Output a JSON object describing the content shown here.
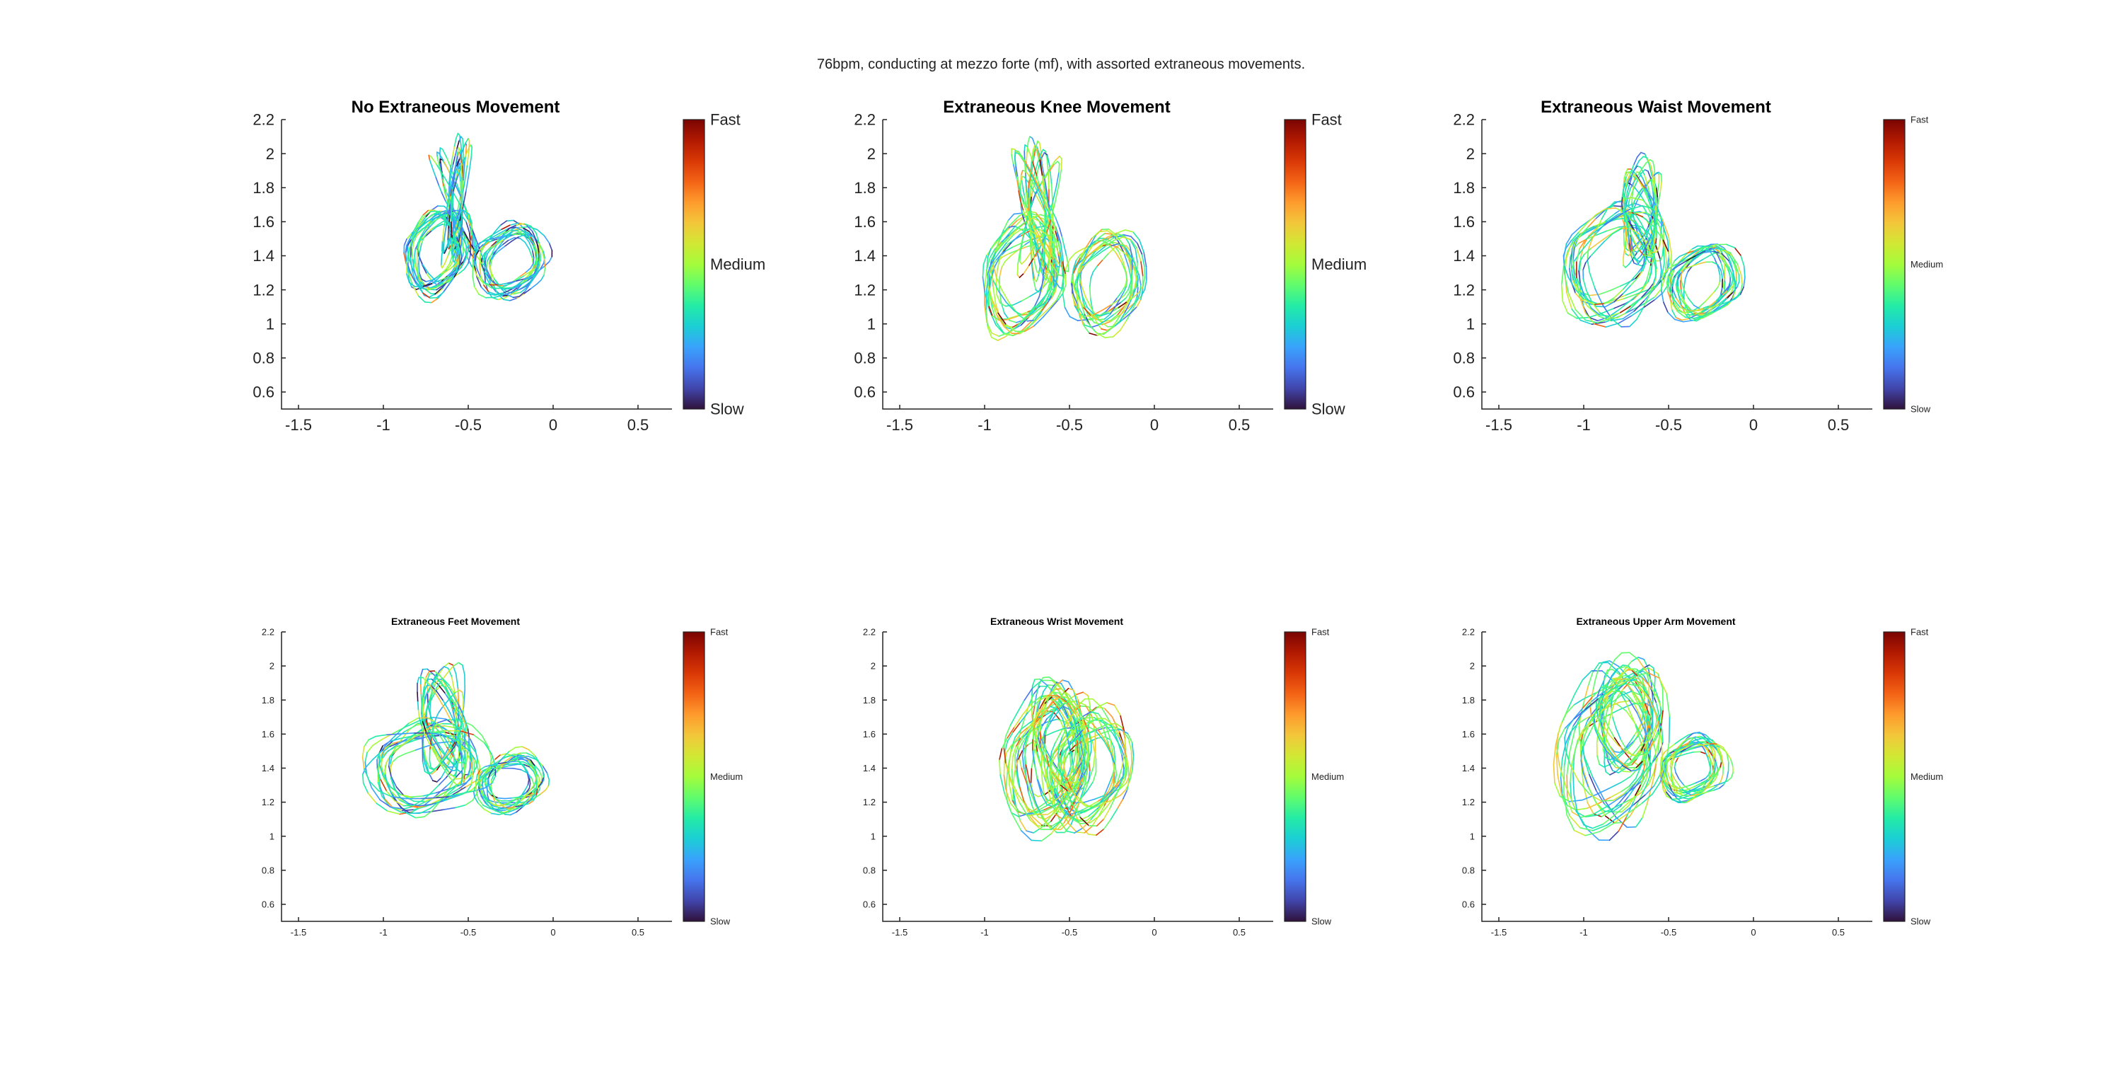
{
  "figure": {
    "suptitle": "76bpm, conducting at mezzo forte (mf), with assorted extraneous movements."
  },
  "colors": {
    "colormap": [
      "#30123b",
      "#4145ab",
      "#4675ed",
      "#39a2fc",
      "#1bcfd4",
      "#24eca6",
      "#61fc6c",
      "#a4fc3b",
      "#d1e834",
      "#f3c63a",
      "#fe9b2d",
      "#f36315",
      "#d93806",
      "#b11901",
      "#7a0402"
    ],
    "axis": "#222222"
  },
  "chart_data": [
    {
      "type": "line",
      "title": "No Extraneous Movement",
      "xlabel": "",
      "ylabel": "",
      "xlim": [
        -1.6,
        0.7
      ],
      "ylim": [
        0.5,
        2.2
      ],
      "xticks": [
        "-1.5",
        "-1",
        "-0.5",
        "0",
        "0.5"
      ],
      "yticks": [
        "0.6",
        "0.8",
        "1",
        "1.2",
        "1.4",
        "1.6",
        "1.8",
        "2",
        "2.2"
      ],
      "colorbar": {
        "labels": [
          "Fast",
          "Medium",
          "Slow"
        ]
      },
      "trace": {
        "center_x": -0.5,
        "center_y": 1.42,
        "left_lobe": {
          "x": -0.68,
          "y": 1.42,
          "rx": 0.15,
          "ry": 0.22
        },
        "right_lobe": {
          "x": -0.25,
          "y": 1.36,
          "rx": 0.17,
          "ry": 0.18
        },
        "top_loop": {
          "x": -0.57,
          "y": 1.72,
          "rx": 0.035,
          "ry": 0.3
        },
        "speed_level": 0.3
      }
    },
    {
      "type": "line",
      "title": "Extraneous Knee Movement",
      "xlabel": "",
      "ylabel": "",
      "xlim": [
        -1.6,
        0.7
      ],
      "ylim": [
        0.5,
        2.2
      ],
      "xticks": [
        "-1.5",
        "-1",
        "-0.5",
        "0",
        "0.5"
      ],
      "yticks": [
        "0.6",
        "0.8",
        "1",
        "1.2",
        "1.4",
        "1.6",
        "1.8",
        "2",
        "2.2"
      ],
      "colorbar": {
        "labels": [
          "Fast",
          "Medium",
          "Slow"
        ]
      },
      "trace": {
        "center_x": -0.55,
        "center_y": 1.3,
        "left_lobe": {
          "x": -0.78,
          "y": 1.3,
          "rx": 0.2,
          "ry": 0.3
        },
        "right_lobe": {
          "x": -0.28,
          "y": 1.25,
          "rx": 0.18,
          "ry": 0.25
        },
        "top_loop": {
          "x": -0.68,
          "y": 1.65,
          "rx": 0.06,
          "ry": 0.35
        },
        "speed_level": 0.42
      }
    },
    {
      "type": "line",
      "title": "Extraneous Waist Movement",
      "xlabel": "",
      "ylabel": "",
      "xlim": [
        -1.6,
        0.7
      ],
      "ylim": [
        0.5,
        2.2
      ],
      "xticks": [
        "-1.5",
        "-1",
        "-0.5",
        "0",
        "0.5"
      ],
      "yticks": [
        "0.6",
        "0.8",
        "1",
        "1.2",
        "1.4",
        "1.6",
        "1.8",
        "2",
        "2.2"
      ],
      "colorbar": {
        "labels": [
          "Fast",
          "Medium",
          "Slow"
        ]
      },
      "trace": {
        "center_x": -0.55,
        "center_y": 1.35,
        "left_lobe": {
          "x": -0.82,
          "y": 1.35,
          "rx": 0.24,
          "ry": 0.3
        },
        "right_lobe": {
          "x": -0.3,
          "y": 1.25,
          "rx": 0.18,
          "ry": 0.2
        },
        "top_loop": {
          "x": -0.66,
          "y": 1.65,
          "rx": 0.08,
          "ry": 0.26
        },
        "speed_level": 0.36
      }
    },
    {
      "type": "line",
      "title": "Extraneous Feet Movement",
      "xlabel": "",
      "ylabel": "",
      "xlim": [
        -1.6,
        0.7
      ],
      "ylim": [
        0.5,
        2.2
      ],
      "xticks": [
        "-1.5",
        "-1",
        "-0.5",
        "0",
        "0.5"
      ],
      "yticks": [
        "0.6",
        "0.8",
        "1",
        "1.2",
        "1.4",
        "1.6",
        "1.8",
        "2",
        "2.2"
      ],
      "colorbar": {
        "labels": [
          "Fast",
          "Medium",
          "Slow"
        ]
      },
      "trace": {
        "center_x": -0.55,
        "center_y": 1.4,
        "left_lobe": {
          "x": -0.75,
          "y": 1.4,
          "rx": 0.28,
          "ry": 0.22
        },
        "right_lobe": {
          "x": -0.25,
          "y": 1.32,
          "rx": 0.17,
          "ry": 0.14
        },
        "top_loop": {
          "x": -0.65,
          "y": 1.65,
          "rx": 0.1,
          "ry": 0.28
        },
        "speed_level": 0.35
      }
    },
    {
      "type": "line",
      "title": "Extraneous Wrist Movement",
      "xlabel": "",
      "ylabel": "",
      "xlim": [
        -1.6,
        0.7
      ],
      "ylim": [
        0.5,
        2.2
      ],
      "xticks": [
        "-1.5",
        "-1",
        "-0.5",
        "0",
        "0.5"
      ],
      "yticks": [
        "0.6",
        "0.8",
        "1",
        "1.2",
        "1.4",
        "1.6",
        "1.8",
        "2",
        "2.2"
      ],
      "colorbar": {
        "labels": [
          "Fast",
          "Medium",
          "Slow"
        ]
      },
      "trace": {
        "center_x": -0.5,
        "center_y": 1.42,
        "left_lobe": {
          "x": -0.62,
          "y": 1.42,
          "rx": 0.2,
          "ry": 0.35
        },
        "right_lobe": {
          "x": -0.38,
          "y": 1.4,
          "rx": 0.2,
          "ry": 0.3
        },
        "top_loop": {
          "x": -0.55,
          "y": 1.55,
          "rx": 0.12,
          "ry": 0.3
        },
        "speed_level": 0.45
      }
    },
    {
      "type": "line",
      "title": "Extraneous Upper Arm Movement",
      "xlabel": "",
      "ylabel": "",
      "xlim": [
        -1.6,
        0.7
      ],
      "ylim": [
        0.5,
        2.2
      ],
      "xticks": [
        "-1.5",
        "-1",
        "-0.5",
        "0",
        "0.5"
      ],
      "yticks": [
        "0.6",
        "0.8",
        "1",
        "1.2",
        "1.4",
        "1.6",
        "1.8",
        "2",
        "2.2"
      ],
      "colorbar": {
        "labels": [
          "Fast",
          "Medium",
          "Slow"
        ]
      },
      "trace": {
        "center_x": -0.6,
        "center_y": 1.5,
        "left_lobe": {
          "x": -0.85,
          "y": 1.5,
          "rx": 0.25,
          "ry": 0.42
        },
        "right_lobe": {
          "x": -0.35,
          "y": 1.4,
          "rx": 0.16,
          "ry": 0.16
        },
        "top_loop": {
          "x": -0.75,
          "y": 1.7,
          "rx": 0.15,
          "ry": 0.3
        },
        "speed_level": 0.4
      }
    }
  ]
}
